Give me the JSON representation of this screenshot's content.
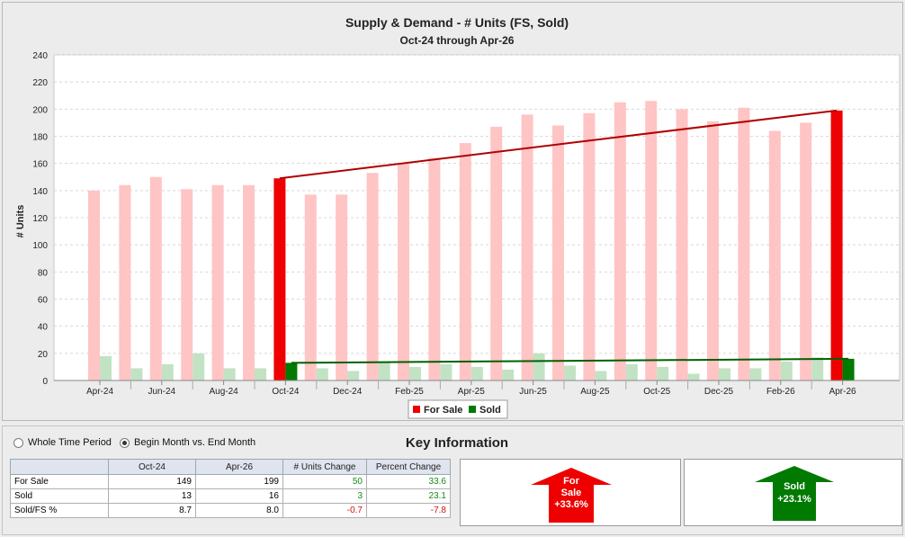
{
  "chart_data": {
    "type": "bar",
    "title": "Supply & Demand - # Units (FS, Sold)",
    "subtitle": "Oct-24 through Apr-26",
    "ylabel": "# Units",
    "ylim": [
      0,
      240
    ],
    "yticks": [
      0,
      20,
      40,
      60,
      80,
      100,
      120,
      140,
      160,
      180,
      200,
      220,
      240
    ],
    "grid": true,
    "legend_position": "bottom",
    "months": [
      "Apr-24",
      "May-24",
      "Jun-24",
      "Jul-24",
      "Aug-24",
      "Sep-24",
      "Oct-24",
      "Nov-24",
      "Dec-24",
      "Jan-25",
      "Feb-25",
      "Mar-25",
      "Apr-25",
      "May-25",
      "Jun-25",
      "Jul-25",
      "Aug-25",
      "Sep-25",
      "Oct-25",
      "Nov-25",
      "Dec-25",
      "Jan-26",
      "Feb-26",
      "Mar-26",
      "Apr-26"
    ],
    "tick_labels": [
      "Apr-24",
      "Jun-24",
      "Aug-24",
      "Oct-24",
      "Dec-24",
      "Feb-25",
      "Apr-25",
      "Jun-25",
      "Aug-25",
      "Oct-25",
      "Dec-25",
      "Feb-26",
      "Apr-26"
    ],
    "series": [
      {
        "name": "For Sale",
        "color": "#ee0000",
        "faded_color": "#ffc4c4",
        "values": [
          140,
          144,
          150,
          141,
          144,
          144,
          149,
          137,
          137,
          153,
          160,
          164,
          175,
          187,
          196,
          188,
          197,
          205,
          206,
          200,
          191,
          201,
          184,
          190,
          199
        ]
      },
      {
        "name": "Sold",
        "color": "#007a00",
        "faded_color": "#c2e2c4",
        "values": [
          18,
          9,
          12,
          20,
          9,
          9,
          13,
          9,
          7,
          13,
          10,
          12,
          10,
          8,
          20,
          11,
          7,
          12,
          10,
          5,
          9,
          9,
          14,
          17,
          16
        ]
      }
    ],
    "highlight_months": [
      "Oct-24",
      "Apr-26"
    ],
    "trend_lines": [
      {
        "series": "For Sale",
        "from": 149,
        "to": 199,
        "color": "#b00000"
      },
      {
        "series": "Sold",
        "from": 13,
        "to": 16,
        "color": "#006000"
      }
    ]
  },
  "options": {
    "whole_period_label": "Whole Time Period",
    "begin_end_label": "Begin Month vs. End Month",
    "selected": "begin_end"
  },
  "key_info": {
    "title": "Key Information",
    "headers": [
      "",
      "Oct-24",
      "Apr-26",
      "# Units Change",
      "Percent Change"
    ],
    "rows": [
      {
        "label": "For Sale",
        "start": "149",
        "end": "199",
        "units_change": "50",
        "pct_change": "33.6"
      },
      {
        "label": "Sold",
        "start": "13",
        "end": "16",
        "units_change": "3",
        "pct_change": "23.1"
      },
      {
        "label": "Sold/FS %",
        "start": "8.7",
        "end": "8.0",
        "units_change": "-0.7",
        "pct_change": "-7.8"
      }
    ]
  },
  "arrows": {
    "for_sale": {
      "line1": "For",
      "line2": "Sale",
      "line3": "+33.6%",
      "color": "#ee0000",
      "direction": "up"
    },
    "sold": {
      "line1": "Sold",
      "line2": "+23.1%",
      "color": "#007a00",
      "direction": "up"
    }
  }
}
